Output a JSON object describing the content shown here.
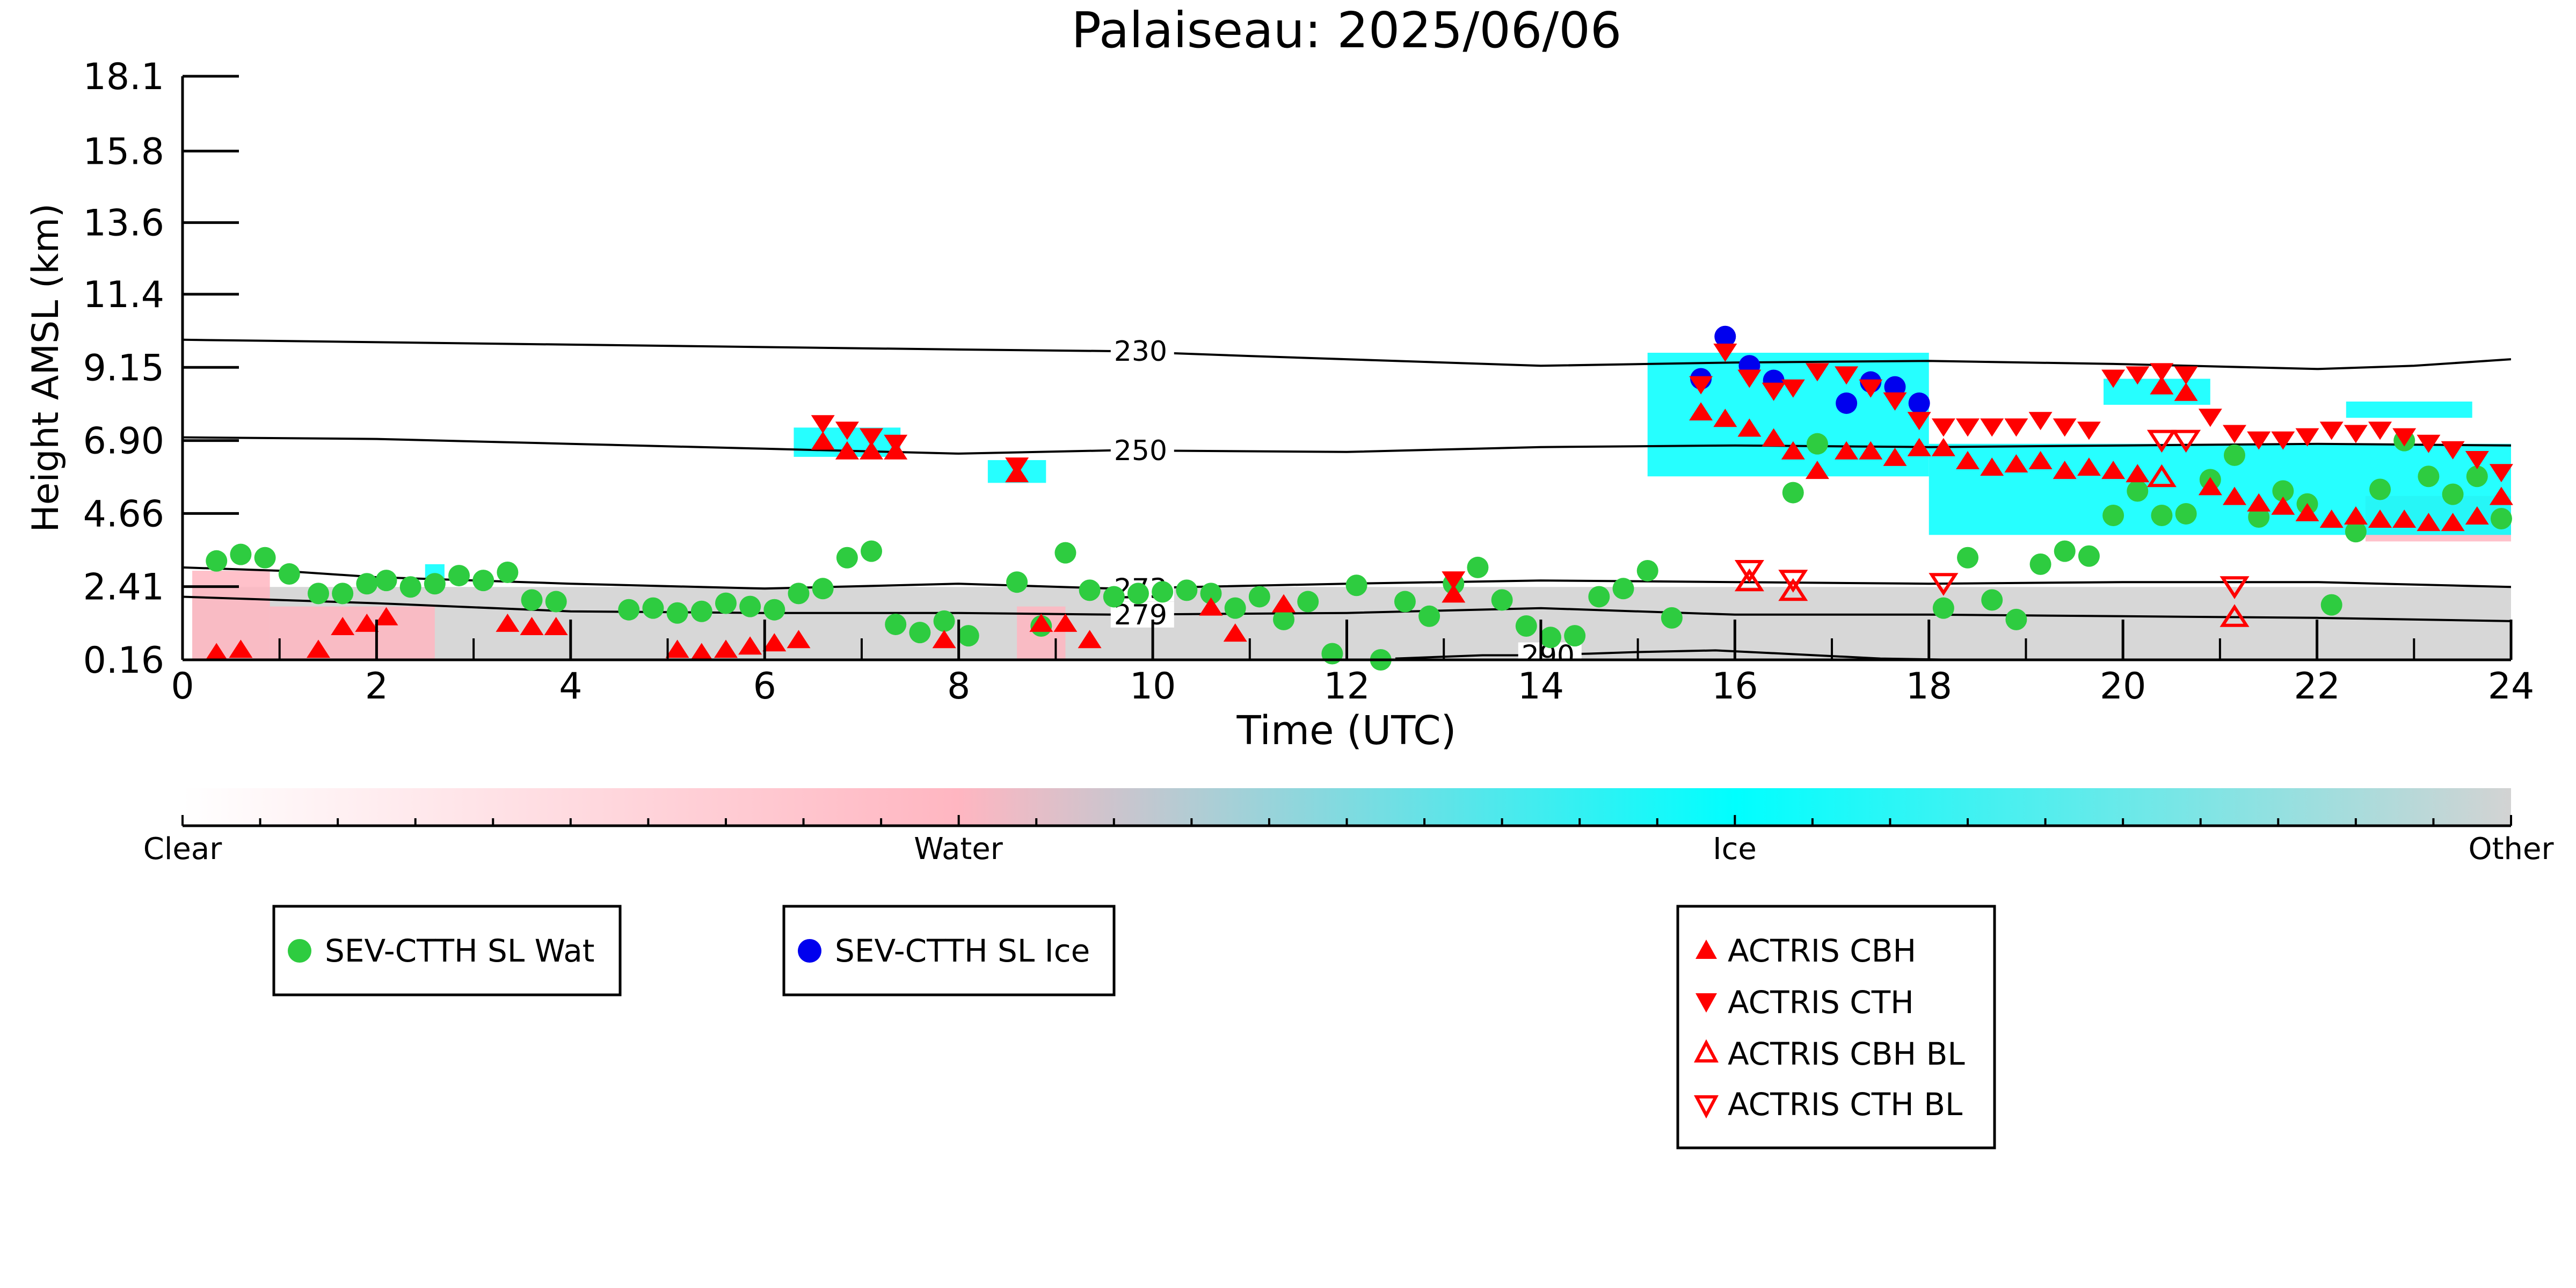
{
  "chart_data": {
    "type": "scatter",
    "title": "Palaiseau: 2025/06/06",
    "xlabel": "Time (UTC)",
    "ylabel": "Height AMSL (km)",
    "xlim": [
      0,
      24
    ],
    "ylim": [
      0.16,
      18.1
    ],
    "x_ticks": [
      "0",
      "2",
      "4",
      "6",
      "8",
      "10",
      "12",
      "14",
      "16",
      "18",
      "20",
      "22",
      "24"
    ],
    "y_ticks": [
      "0.16",
      "2.41",
      "4.66",
      "6.90",
      "9.15",
      "11.4",
      "13.6",
      "15.8",
      "18.1"
    ],
    "grid": false,
    "colors": {
      "clear": "#ffffff",
      "water": "#ffb6c1",
      "ice": "#00ffff",
      "other": "#d3d3d3",
      "sev_wat": "#2ecc40",
      "sev_ice": "#0000ee",
      "actris": "#ff0000"
    },
    "colorbar": {
      "labels": [
        "Clear",
        "Water",
        "Ice",
        "Other"
      ]
    },
    "contours": [
      {
        "label": "230",
        "label_x": 9.6,
        "points": [
          [
            0,
            10.0
          ],
          [
            4,
            9.85
          ],
          [
            8,
            9.7
          ],
          [
            9.6,
            9.65
          ],
          [
            11,
            9.5
          ],
          [
            13,
            9.3
          ],
          [
            14,
            9.2
          ],
          [
            16,
            9.3
          ],
          [
            18,
            9.35
          ],
          [
            20,
            9.25
          ],
          [
            22,
            9.1
          ],
          [
            23,
            9.2
          ],
          [
            24,
            9.4
          ]
        ]
      },
      {
        "label": "250",
        "label_x": 9.6,
        "points": [
          [
            0,
            7.0
          ],
          [
            2,
            6.95
          ],
          [
            4,
            6.8
          ],
          [
            6,
            6.65
          ],
          [
            8,
            6.5
          ],
          [
            9.6,
            6.6
          ],
          [
            12,
            6.55
          ],
          [
            14,
            6.7
          ],
          [
            16,
            6.75
          ],
          [
            18,
            6.7
          ],
          [
            20,
            6.75
          ],
          [
            22,
            6.8
          ],
          [
            24,
            6.75
          ]
        ]
      },
      {
        "label": "273",
        "label_x": 9.6,
        "points": [
          [
            0,
            3.0
          ],
          [
            1,
            2.9
          ],
          [
            2,
            2.7
          ],
          [
            4,
            2.5
          ],
          [
            6,
            2.35
          ],
          [
            8,
            2.5
          ],
          [
            9.6,
            2.35
          ],
          [
            12,
            2.5
          ],
          [
            14,
            2.6
          ],
          [
            16,
            2.55
          ],
          [
            18,
            2.5
          ],
          [
            20,
            2.55
          ],
          [
            22,
            2.55
          ],
          [
            24,
            2.4
          ]
        ]
      },
      {
        "label": "279",
        "label_x": 9.6,
        "points": [
          [
            0,
            2.1
          ],
          [
            2,
            1.9
          ],
          [
            4,
            1.65
          ],
          [
            6,
            1.6
          ],
          [
            8,
            1.6
          ],
          [
            9.6,
            1.55
          ],
          [
            12,
            1.6
          ],
          [
            14,
            1.75
          ],
          [
            16,
            1.55
          ],
          [
            18,
            1.55
          ],
          [
            20,
            1.5
          ],
          [
            22,
            1.45
          ],
          [
            24,
            1.35
          ]
        ]
      },
      {
        "label": "290",
        "label_x": 13.8,
        "points": [
          [
            12.5,
            0.2
          ],
          [
            13.4,
            0.3
          ],
          [
            13.8,
            0.3
          ],
          [
            14.5,
            0.35
          ],
          [
            15,
            0.4
          ],
          [
            15.8,
            0.45
          ],
          [
            16.5,
            0.35
          ],
          [
            17.5,
            0.2
          ],
          [
            18.3,
            0.16
          ]
        ]
      }
    ],
    "cloud_regions": [
      {
        "type": "other",
        "x0": 0.1,
        "x1": 24,
        "y0": 0.16,
        "y1": 2.4
      },
      {
        "type": "water",
        "x0": 0.1,
        "x1": 0.9,
        "y0": 0.16,
        "y1": 2.9
      },
      {
        "type": "water",
        "x0": 0.9,
        "x1": 2.6,
        "y0": 0.16,
        "y1": 1.8
      },
      {
        "type": "water",
        "x0": 8.6,
        "x1": 9.1,
        "y0": 0.16,
        "y1": 1.8
      },
      {
        "type": "water",
        "x0": 22.5,
        "x1": 24,
        "y0": 3.8,
        "y1": 5.2
      },
      {
        "type": "ice",
        "x0": 6.3,
        "x1": 7.4,
        "y0": 6.4,
        "y1": 7.3
      },
      {
        "type": "ice",
        "x0": 8.3,
        "x1": 8.9,
        "y0": 5.6,
        "y1": 6.3
      },
      {
        "type": "ice",
        "x0": 15.1,
        "x1": 18.0,
        "y0": 5.8,
        "y1": 9.6
      },
      {
        "type": "ice",
        "x0": 18.0,
        "x1": 24.0,
        "y0": 4.0,
        "y1": 6.8
      },
      {
        "type": "ice",
        "x0": 19.8,
        "x1": 20.9,
        "y0": 8.0,
        "y1": 8.8
      },
      {
        "type": "ice",
        "x0": 22.3,
        "x1": 23.6,
        "y0": 7.6,
        "y1": 8.1
      },
      {
        "type": "ice",
        "x0": 2.5,
        "x1": 2.7,
        "y0": 2.4,
        "y1": 3.1
      }
    ],
    "series": [
      {
        "name": "SEV-CTTH SL Wat",
        "marker": "circle",
        "points": [
          [
            0.35,
            3.2
          ],
          [
            0.6,
            3.4
          ],
          [
            0.85,
            3.3
          ],
          [
            1.1,
            2.8
          ],
          [
            1.4,
            2.2
          ],
          [
            1.65,
            2.2
          ],
          [
            1.9,
            2.5
          ],
          [
            2.1,
            2.6
          ],
          [
            2.35,
            2.4
          ],
          [
            2.6,
            2.5
          ],
          [
            2.85,
            2.75
          ],
          [
            3.1,
            2.6
          ],
          [
            3.35,
            2.85
          ],
          [
            3.6,
            2.0
          ],
          [
            3.85,
            1.95
          ],
          [
            4.6,
            1.7
          ],
          [
            4.85,
            1.75
          ],
          [
            5.1,
            1.6
          ],
          [
            5.35,
            1.65
          ],
          [
            5.6,
            1.9
          ],
          [
            5.85,
            1.8
          ],
          [
            6.1,
            1.7
          ],
          [
            6.35,
            2.2
          ],
          [
            6.6,
            2.35
          ],
          [
            6.85,
            3.3
          ],
          [
            7.1,
            3.5
          ],
          [
            7.35,
            1.25
          ],
          [
            7.6,
            1.0
          ],
          [
            7.85,
            1.35
          ],
          [
            8.1,
            0.9
          ],
          [
            8.6,
            2.55
          ],
          [
            8.85,
            1.2
          ],
          [
            9.1,
            3.45
          ],
          [
            9.35,
            2.3
          ],
          [
            9.6,
            2.1
          ],
          [
            9.85,
            2.2
          ],
          [
            10.1,
            2.25
          ],
          [
            10.35,
            2.3
          ],
          [
            10.6,
            2.2
          ],
          [
            10.85,
            1.75
          ],
          [
            11.1,
            2.1
          ],
          [
            11.35,
            1.4
          ],
          [
            11.6,
            1.95
          ],
          [
            11.85,
            0.35
          ],
          [
            12.1,
            2.45
          ],
          [
            12.35,
            0.16
          ],
          [
            12.6,
            1.95
          ],
          [
            12.85,
            1.5
          ],
          [
            13.1,
            2.5
          ],
          [
            13.35,
            3.0
          ],
          [
            13.6,
            2.0
          ],
          [
            13.85,
            1.2
          ],
          [
            14.1,
            0.85
          ],
          [
            14.35,
            0.9
          ],
          [
            14.6,
            2.1
          ],
          [
            14.85,
            2.35
          ],
          [
            15.1,
            2.9
          ],
          [
            15.35,
            1.45
          ],
          [
            16.6,
            5.3
          ],
          [
            16.85,
            6.8
          ],
          [
            18.15,
            1.75
          ],
          [
            18.4,
            3.3
          ],
          [
            18.65,
            2.0
          ],
          [
            18.9,
            1.4
          ],
          [
            19.15,
            3.1
          ],
          [
            19.4,
            3.5
          ],
          [
            19.65,
            3.35
          ],
          [
            19.9,
            4.6
          ],
          [
            20.15,
            5.35
          ],
          [
            20.4,
            4.6
          ],
          [
            20.65,
            4.65
          ],
          [
            20.9,
            5.7
          ],
          [
            21.15,
            6.45
          ],
          [
            21.4,
            4.55
          ],
          [
            21.65,
            5.35
          ],
          [
            21.9,
            4.95
          ],
          [
            22.15,
            1.85
          ],
          [
            22.4,
            4.1
          ],
          [
            22.65,
            5.4
          ],
          [
            22.9,
            6.9
          ],
          [
            23.15,
            5.8
          ],
          [
            23.4,
            5.25
          ],
          [
            23.65,
            5.8
          ],
          [
            23.9,
            4.5
          ]
        ]
      },
      {
        "name": "SEV-CTTH SL Ice",
        "marker": "circle",
        "points": [
          [
            15.65,
            8.8
          ],
          [
            15.9,
            10.1
          ],
          [
            16.15,
            9.2
          ],
          [
            16.4,
            8.75
          ],
          [
            17.15,
            8.05
          ],
          [
            17.4,
            8.7
          ],
          [
            17.65,
            8.55
          ],
          [
            17.9,
            8.05
          ]
        ]
      },
      {
        "name": "ACTRIS CBH",
        "marker": "triangle-up",
        "points": [
          [
            0.35,
            0.4
          ],
          [
            0.6,
            0.5
          ],
          [
            1.4,
            0.5
          ],
          [
            1.65,
            1.2
          ],
          [
            1.9,
            1.3
          ],
          [
            2.1,
            1.5
          ],
          [
            3.35,
            1.3
          ],
          [
            3.6,
            1.2
          ],
          [
            3.85,
            1.2
          ],
          [
            5.1,
            0.5
          ],
          [
            5.35,
            0.4
          ],
          [
            5.6,
            0.5
          ],
          [
            5.85,
            0.6
          ],
          [
            6.1,
            0.7
          ],
          [
            6.35,
            0.8
          ],
          [
            6.6,
            6.9
          ],
          [
            6.85,
            6.6
          ],
          [
            7.1,
            6.6
          ],
          [
            7.35,
            6.6
          ],
          [
            7.85,
            0.8
          ],
          [
            8.6,
            5.9
          ],
          [
            8.85,
            1.3
          ],
          [
            9.1,
            1.3
          ],
          [
            9.35,
            0.8
          ],
          [
            10.6,
            1.8
          ],
          [
            10.85,
            1.0
          ],
          [
            11.35,
            1.9
          ],
          [
            13.1,
            2.2
          ],
          [
            15.65,
            7.8
          ],
          [
            15.9,
            7.6
          ],
          [
            16.15,
            7.3
          ],
          [
            16.4,
            7.0
          ],
          [
            16.6,
            6.6
          ],
          [
            16.85,
            6.0
          ],
          [
            17.15,
            6.6
          ],
          [
            17.4,
            6.6
          ],
          [
            17.65,
            6.4
          ],
          [
            17.9,
            6.7
          ],
          [
            18.15,
            6.7
          ],
          [
            18.4,
            6.3
          ],
          [
            18.65,
            6.1
          ],
          [
            18.9,
            6.2
          ],
          [
            19.15,
            6.3
          ],
          [
            19.4,
            6.0
          ],
          [
            19.65,
            6.1
          ],
          [
            19.9,
            6.0
          ],
          [
            20.15,
            5.9
          ],
          [
            20.4,
            8.6
          ],
          [
            20.65,
            8.4
          ],
          [
            20.9,
            5.5
          ],
          [
            21.15,
            5.2
          ],
          [
            21.4,
            5.0
          ],
          [
            21.65,
            4.9
          ],
          [
            21.9,
            4.7
          ],
          [
            22.15,
            4.5
          ],
          [
            22.4,
            4.6
          ],
          [
            22.65,
            4.5
          ],
          [
            22.9,
            4.5
          ],
          [
            23.15,
            4.4
          ],
          [
            23.4,
            4.4
          ],
          [
            23.65,
            4.6
          ],
          [
            23.9,
            5.2
          ]
        ]
      },
      {
        "name": "ACTRIS CTH",
        "marker": "triangle-down",
        "points": [
          [
            6.6,
            7.4
          ],
          [
            6.85,
            7.2
          ],
          [
            7.1,
            7.0
          ],
          [
            7.35,
            6.8
          ],
          [
            8.6,
            6.1
          ],
          [
            13.1,
            2.6
          ],
          [
            15.65,
            8.6
          ],
          [
            15.9,
            9.6
          ],
          [
            16.15,
            8.8
          ],
          [
            16.4,
            8.4
          ],
          [
            16.6,
            8.5
          ],
          [
            16.85,
            9.0
          ],
          [
            17.15,
            8.9
          ],
          [
            17.4,
            8.5
          ],
          [
            17.65,
            8.1
          ],
          [
            17.9,
            7.5
          ],
          [
            18.15,
            7.3
          ],
          [
            18.4,
            7.3
          ],
          [
            18.65,
            7.3
          ],
          [
            18.9,
            7.3
          ],
          [
            19.15,
            7.5
          ],
          [
            19.4,
            7.3
          ],
          [
            19.65,
            7.2
          ],
          [
            19.9,
            8.8
          ],
          [
            20.15,
            8.9
          ],
          [
            20.4,
            9.0
          ],
          [
            20.65,
            8.9
          ],
          [
            20.9,
            7.6
          ],
          [
            21.15,
            7.1
          ],
          [
            21.4,
            6.9
          ],
          [
            21.65,
            6.9
          ],
          [
            21.9,
            7.0
          ],
          [
            22.15,
            7.2
          ],
          [
            22.4,
            7.1
          ],
          [
            22.65,
            7.2
          ],
          [
            22.9,
            7.0
          ],
          [
            23.15,
            6.8
          ],
          [
            23.4,
            6.6
          ],
          [
            23.65,
            6.3
          ],
          [
            23.9,
            5.9
          ]
        ]
      },
      {
        "name": "ACTRIS CBH BL",
        "marker": "triangle-up-open",
        "points": [
          [
            16.15,
            2.6
          ],
          [
            16.6,
            2.3
          ],
          [
            20.4,
            5.8
          ],
          [
            21.15,
            1.5
          ]
        ]
      },
      {
        "name": "ACTRIS CTH BL",
        "marker": "triangle-down-open",
        "points": [
          [
            16.15,
            2.9
          ],
          [
            16.6,
            2.6
          ],
          [
            18.15,
            2.5
          ],
          [
            20.4,
            6.9
          ],
          [
            20.65,
            6.9
          ],
          [
            21.15,
            2.4
          ]
        ]
      }
    ],
    "legends": [
      {
        "entries": [
          "SEV-CTTH SL Wat"
        ]
      },
      {
        "entries": [
          "SEV-CTTH SL Ice"
        ]
      },
      {
        "entries": [
          "ACTRIS CBH",
          "ACTRIS CTH",
          "ACTRIS CBH BL",
          "ACTRIS CTH BL"
        ]
      }
    ]
  }
}
